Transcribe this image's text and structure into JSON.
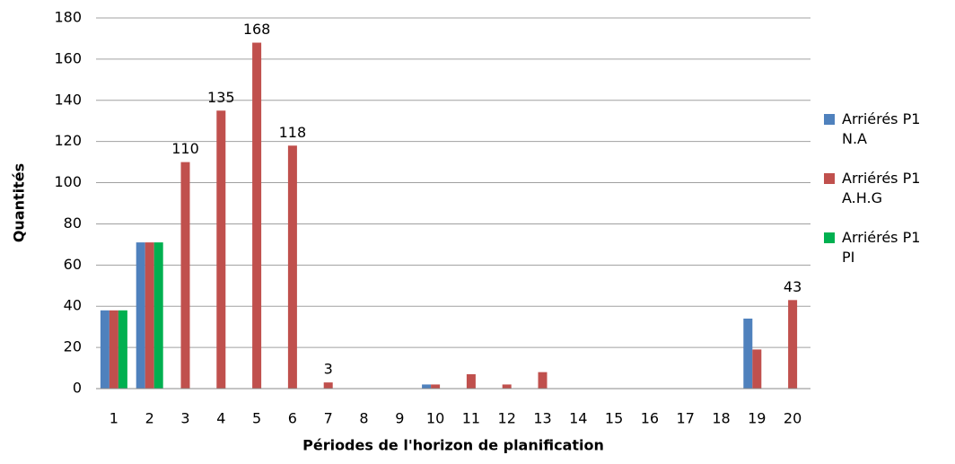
{
  "chart_data": {
    "type": "bar",
    "xlabel": "Périodes de l'horizon de planification",
    "ylabel": "Quantités",
    "categories": [
      "1",
      "2",
      "3",
      "4",
      "5",
      "6",
      "7",
      "8",
      "9",
      "10",
      "11",
      "12",
      "13",
      "14",
      "15",
      "16",
      "17",
      "18",
      "19",
      "20"
    ],
    "series": [
      {
        "name": "Arriérés P1 N.A",
        "color": "#4f81bd",
        "values": [
          38,
          71,
          0,
          0,
          0,
          0,
          0,
          0,
          0,
          2,
          0,
          0,
          0,
          0,
          0,
          0,
          0,
          0,
          34,
          0
        ]
      },
      {
        "name": "Arriérés P1 A.H.G",
        "color": "#c0504d",
        "values": [
          38,
          71,
          110,
          135,
          168,
          118,
          3,
          0,
          0,
          2,
          7,
          2,
          8,
          0,
          0,
          0,
          0,
          0,
          19,
          43
        ],
        "value_labels": [
          null,
          null,
          "110",
          "135",
          "168",
          "118",
          "3",
          null,
          null,
          null,
          null,
          null,
          null,
          null,
          null,
          null,
          null,
          null,
          null,
          "43"
        ]
      },
      {
        "name": "Arriérés P1 PI",
        "color": "#00b050",
        "values": [
          38,
          71,
          0,
          0,
          0,
          0,
          0,
          0,
          0,
          0,
          0,
          0,
          0,
          0,
          0,
          0,
          0,
          0,
          0,
          0
        ]
      }
    ],
    "ylim": [
      0,
      180
    ],
    "yticks": [
      0,
      20,
      40,
      60,
      80,
      100,
      120,
      140,
      160,
      180
    ],
    "grid": true,
    "legend": "right"
  }
}
